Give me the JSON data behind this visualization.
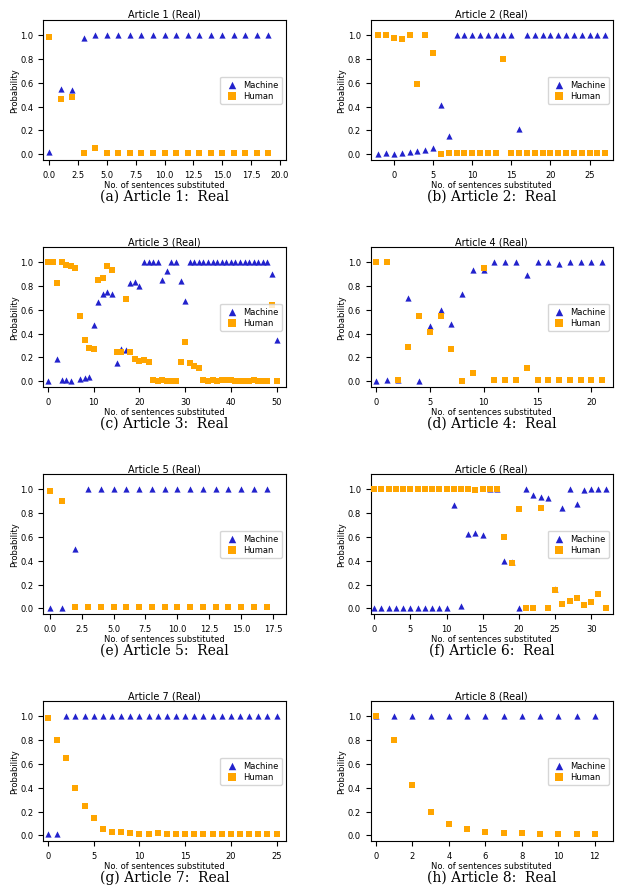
{
  "subplots": [
    {
      "title": "Article 1 (Real)",
      "caption": "(a) Article 1:  Real",
      "machine_x": [
        0,
        1,
        2,
        3,
        4,
        5,
        6,
        7,
        8,
        9,
        10,
        11,
        12,
        13,
        14,
        15,
        16,
        17,
        18,
        19
      ],
      "machine_y": [
        0.02,
        0.55,
        0.54,
        0.97,
        1.0,
        1.0,
        1.0,
        1.0,
        1.0,
        1.0,
        1.0,
        1.0,
        1.0,
        1.0,
        1.0,
        1.0,
        1.0,
        1.0,
        1.0,
        1.0
      ],
      "human_x": [
        0,
        1,
        2,
        3,
        4,
        5,
        6,
        7,
        8,
        9,
        10,
        11,
        12,
        13,
        14,
        15,
        16,
        17,
        18,
        19
      ],
      "human_y": [
        0.98,
        0.46,
        0.48,
        0.01,
        0.05,
        0.01,
        0.01,
        0.01,
        0.01,
        0.01,
        0.01,
        0.01,
        0.01,
        0.01,
        0.01,
        0.01,
        0.01,
        0.01,
        0.01,
        0.01
      ],
      "xlim": [
        -0.5,
        20.5
      ],
      "xticks": [
        0.0,
        2.5,
        5.0,
        7.5,
        10.0,
        12.5,
        15.0,
        17.5,
        20.0
      ]
    },
    {
      "title": "Article 2 (Real)",
      "caption": "(b) Article 2:  Real",
      "machine_x": [
        -2,
        -1,
        0,
        1,
        2,
        3,
        4,
        5,
        6,
        7,
        8,
        9,
        10,
        11,
        12,
        13,
        14,
        15,
        16,
        17,
        18,
        19,
        20,
        21,
        22,
        23,
        24,
        25,
        26,
        27
      ],
      "machine_y": [
        0.0,
        0.01,
        0.0,
        0.01,
        0.02,
        0.03,
        0.04,
        0.05,
        0.41,
        0.15,
        1.0,
        1.0,
        1.0,
        1.0,
        1.0,
        1.0,
        1.0,
        1.0,
        0.21,
        1.0,
        1.0,
        1.0,
        1.0,
        1.0,
        1.0,
        1.0,
        1.0,
        1.0,
        1.0,
        1.0
      ],
      "human_x": [
        -2,
        -1,
        0,
        1,
        2,
        3,
        4,
        5,
        6,
        7,
        8,
        9,
        10,
        11,
        12,
        13,
        14,
        15,
        16,
        17,
        18,
        19,
        20,
        21,
        22,
        23,
        24,
        25,
        26,
        27
      ],
      "human_y": [
        1.0,
        1.0,
        0.97,
        0.96,
        1.0,
        0.59,
        1.0,
        0.85,
        0.0,
        0.01,
        0.01,
        0.01,
        0.01,
        0.01,
        0.01,
        0.01,
        0.8,
        0.01,
        0.01,
        0.01,
        0.01,
        0.01,
        0.01,
        0.01,
        0.01,
        0.01,
        0.01,
        0.01,
        0.01,
        0.01
      ],
      "xlim": [
        -3,
        28
      ],
      "xticks": [
        0,
        5,
        10,
        15,
        20,
        25
      ]
    },
    {
      "title": "Article 3 (Real)",
      "caption": "(c) Article 3:  Real",
      "machine_x": [
        0,
        2,
        3,
        4,
        5,
        7,
        8,
        9,
        10,
        11,
        12,
        13,
        14,
        15,
        16,
        17,
        18,
        19,
        20,
        21,
        22,
        23,
        24,
        25,
        26,
        27,
        28,
        29,
        30,
        31,
        32,
        33,
        34,
        35,
        36,
        37,
        38,
        39,
        40,
        41,
        42,
        43,
        44,
        45,
        46,
        47,
        48,
        49,
        50
      ],
      "machine_y": [
        0.0,
        0.19,
        0.01,
        0.01,
        0.0,
        0.02,
        0.03,
        0.04,
        0.47,
        0.66,
        0.73,
        0.75,
        0.73,
        0.15,
        0.27,
        0.26,
        0.82,
        0.83,
        0.8,
        1.0,
        1.0,
        1.0,
        1.0,
        0.85,
        0.92,
        1.0,
        1.0,
        0.84,
        0.67,
        1.0,
        1.0,
        1.0,
        1.0,
        1.0,
        1.0,
        1.0,
        1.0,
        1.0,
        1.0,
        1.0,
        1.0,
        1.0,
        1.0,
        1.0,
        1.0,
        1.0,
        1.0,
        0.9,
        0.35
      ],
      "human_x": [
        0,
        1,
        2,
        3,
        4,
        5,
        6,
        7,
        8,
        9,
        10,
        11,
        12,
        13,
        14,
        15,
        16,
        17,
        18,
        19,
        20,
        21,
        22,
        23,
        24,
        25,
        26,
        27,
        28,
        29,
        30,
        31,
        32,
        33,
        34,
        35,
        36,
        37,
        38,
        39,
        40,
        41,
        42,
        43,
        44,
        45,
        46,
        47,
        48,
        49,
        50
      ],
      "human_y": [
        1.0,
        1.0,
        0.82,
        1.0,
        0.97,
        0.96,
        0.95,
        0.55,
        0.35,
        0.28,
        0.27,
        0.85,
        0.86,
        0.96,
        0.93,
        0.25,
        0.25,
        0.69,
        0.25,
        0.19,
        0.17,
        0.18,
        0.16,
        0.01,
        0.0,
        0.01,
        0.0,
        0.0,
        0.0,
        0.16,
        0.33,
        0.15,
        0.13,
        0.11,
        0.01,
        0.0,
        0.01,
        0.0,
        0.01,
        0.01,
        0.01,
        0.0,
        0.0,
        0.0,
        0.0,
        0.01,
        0.0,
        0.0,
        0.0,
        0.64,
        0.0
      ],
      "xlim": [
        -1,
        52
      ],
      "xticks": [
        0,
        10,
        20,
        30,
        40,
        50
      ]
    },
    {
      "title": "Article 4 (Real)",
      "caption": "(d) Article 4:  Real",
      "machine_x": [
        0,
        1,
        2,
        3,
        4,
        5,
        6,
        7,
        8,
        9,
        10,
        11,
        12,
        13,
        14,
        15,
        16,
        17,
        18,
        19,
        20,
        21
      ],
      "machine_y": [
        0.0,
        0.01,
        0.01,
        0.7,
        0.0,
        0.46,
        0.6,
        0.48,
        0.73,
        0.93,
        0.93,
        1.0,
        1.0,
        1.0,
        0.89,
        1.0,
        1.0,
        0.98,
        1.0,
        1.0,
        1.0,
        1.0
      ],
      "human_x": [
        0,
        1,
        2,
        3,
        4,
        5,
        6,
        7,
        8,
        9,
        10,
        11,
        12,
        13,
        14,
        15,
        16,
        17,
        18,
        19,
        20,
        21
      ],
      "human_y": [
        1.0,
        1.0,
        0.01,
        0.29,
        0.55,
        0.41,
        0.55,
        0.27,
        0.0,
        0.07,
        0.95,
        0.01,
        0.01,
        0.01,
        0.11,
        0.01,
        0.01,
        0.01,
        0.01,
        0.01,
        0.01,
        0.01
      ],
      "xlim": [
        -0.5,
        22
      ],
      "xticks": [
        0,
        5,
        10,
        15,
        20
      ]
    },
    {
      "title": "Article 5 (Real)",
      "caption": "(e) Article 5:  Real",
      "machine_x": [
        0,
        1,
        2,
        3,
        4,
        5,
        6,
        7,
        8,
        9,
        10,
        11,
        12,
        13,
        14,
        15,
        16,
        17
      ],
      "machine_y": [
        0.0,
        0.0,
        0.5,
        1.0,
        1.0,
        1.0,
        1.0,
        1.0,
        1.0,
        1.0,
        1.0,
        1.0,
        1.0,
        1.0,
        1.0,
        1.0,
        1.0,
        1.0
      ],
      "human_x": [
        0,
        1,
        2,
        3,
        4,
        5,
        6,
        7,
        8,
        9,
        10,
        11,
        12,
        13,
        14,
        15,
        16,
        17
      ],
      "human_y": [
        0.98,
        0.9,
        0.01,
        0.01,
        0.01,
        0.01,
        0.01,
        0.01,
        0.01,
        0.01,
        0.01,
        0.01,
        0.01,
        0.01,
        0.01,
        0.01,
        0.01,
        0.01
      ],
      "xlim": [
        -0.5,
        18.5
      ],
      "xticks": [
        0.0,
        2.5,
        5.0,
        7.5,
        10.0,
        12.5,
        15.0,
        17.5
      ]
    },
    {
      "title": "Article 6 (Real)",
      "caption": "(f) Article 6:  Real",
      "machine_x": [
        0,
        1,
        2,
        3,
        4,
        5,
        6,
        7,
        8,
        9,
        10,
        11,
        12,
        13,
        14,
        15,
        16,
        17,
        18,
        19,
        20,
        21,
        22,
        23,
        24,
        25,
        26,
        27,
        28,
        29,
        30,
        31,
        32
      ],
      "machine_y": [
        0.0,
        0.0,
        0.0,
        0.0,
        0.0,
        0.0,
        0.0,
        0.0,
        0.0,
        0.0,
        0.0,
        0.86,
        0.02,
        0.62,
        0.63,
        0.61,
        1.0,
        1.0,
        0.4,
        0.39,
        0.0,
        1.0,
        0.95,
        0.93,
        0.92,
        0.16,
        0.84,
        1.0,
        0.87,
        0.99,
        1.0,
        1.0,
        1.0
      ],
      "human_x": [
        0,
        1,
        2,
        3,
        4,
        5,
        6,
        7,
        8,
        9,
        10,
        11,
        12,
        13,
        14,
        15,
        16,
        17,
        18,
        19,
        20,
        21,
        22,
        23,
        24,
        25,
        26,
        27,
        28,
        29,
        30,
        31,
        32
      ],
      "human_y": [
        1.0,
        1.0,
        1.0,
        1.0,
        1.0,
        1.0,
        1.0,
        1.0,
        1.0,
        1.0,
        1.0,
        1.0,
        1.0,
        1.0,
        0.99,
        1.0,
        1.0,
        1.0,
        0.6,
        0.38,
        0.83,
        0.0,
        0.0,
        0.84,
        0.0,
        0.15,
        0.04,
        0.06,
        0.09,
        0.03,
        0.05,
        0.12,
        0.0
      ],
      "xlim": [
        -0.5,
        33
      ],
      "xticks": [
        0,
        5,
        10,
        15,
        20,
        25,
        30
      ]
    },
    {
      "title": "Article 7 (Real)",
      "caption": "(g) Article 7:  Real",
      "machine_x": [
        0,
        1,
        2,
        3,
        4,
        5,
        6,
        7,
        8,
        9,
        10,
        11,
        12,
        13,
        14,
        15,
        16,
        17,
        18,
        19,
        20,
        21,
        22,
        23,
        24,
        25
      ],
      "machine_y": [
        0.01,
        0.01,
        1.0,
        1.0,
        1.0,
        1.0,
        1.0,
        1.0,
        1.0,
        1.0,
        1.0,
        1.0,
        1.0,
        1.0,
        1.0,
        1.0,
        1.0,
        1.0,
        1.0,
        1.0,
        1.0,
        1.0,
        1.0,
        1.0,
        1.0,
        1.0
      ],
      "human_x": [
        0,
        1,
        2,
        3,
        4,
        5,
        6,
        7,
        8,
        9,
        10,
        11,
        12,
        13,
        14,
        15,
        16,
        17,
        18,
        19,
        20,
        21,
        22,
        23,
        24,
        25
      ],
      "human_y": [
        0.98,
        0.8,
        0.65,
        0.4,
        0.25,
        0.15,
        0.05,
        0.03,
        0.03,
        0.02,
        0.01,
        0.01,
        0.02,
        0.01,
        0.01,
        0.01,
        0.01,
        0.01,
        0.01,
        0.01,
        0.01,
        0.01,
        0.01,
        0.01,
        0.01,
        0.01
      ],
      "xlim": [
        -0.5,
        26
      ],
      "xticks": [
        0,
        5,
        10,
        15,
        20,
        25
      ]
    },
    {
      "title": "Article 8 (Real)",
      "caption": "(h) Article 8:  Real",
      "machine_x": [
        0,
        1,
        2,
        3,
        4,
        5,
        6,
        7,
        8,
        9,
        10,
        11,
        12
      ],
      "machine_y": [
        1.0,
        1.0,
        1.0,
        1.0,
        1.0,
        1.0,
        1.0,
        1.0,
        1.0,
        1.0,
        1.0,
        1.0,
        1.0
      ],
      "human_x": [
        0,
        1,
        2,
        3,
        4,
        5,
        6,
        7,
        8,
        9,
        10,
        11,
        12
      ],
      "human_y": [
        1.0,
        0.8,
        0.42,
        0.2,
        0.1,
        0.05,
        0.03,
        0.02,
        0.02,
        0.01,
        0.01,
        0.01,
        0.01
      ],
      "xlim": [
        -0.3,
        13
      ],
      "xticks": [
        0,
        2,
        4,
        6,
        8,
        10,
        12
      ]
    }
  ],
  "machine_color": "#2222cc",
  "human_color": "#ffa500",
  "machine_marker": "^",
  "human_marker": "s",
  "marker_size": 20,
  "xlabel": "No. of sentences substituted",
  "ylabel": "Probability",
  "figure_bgcolor": "#ffffff",
  "caption_fontsize": 10,
  "title_fontsize": 7,
  "tick_fontsize": 6,
  "label_fontsize": 6,
  "legend_fontsize": 6
}
